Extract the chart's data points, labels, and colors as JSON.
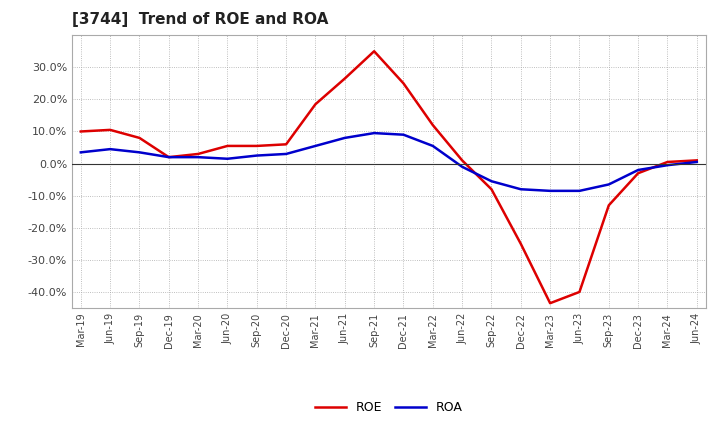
{
  "title": "[3744]  Trend of ROE and ROA",
  "title_fontsize": 11,
  "background_color": "#ffffff",
  "plot_bg_color": "#ffffff",
  "grid_color": "#aaaaaa",
  "x_labels": [
    "Mar-19",
    "Jun-19",
    "Sep-19",
    "Dec-19",
    "Mar-20",
    "Jun-20",
    "Sep-20",
    "Dec-20",
    "Mar-21",
    "Jun-21",
    "Sep-21",
    "Dec-21",
    "Mar-22",
    "Jun-22",
    "Sep-22",
    "Dec-22",
    "Mar-23",
    "Jun-23",
    "Sep-23",
    "Dec-23",
    "Mar-24",
    "Jun-24"
  ],
  "ROE": [
    10.0,
    10.5,
    8.0,
    2.0,
    3.0,
    5.5,
    5.5,
    6.0,
    18.5,
    26.5,
    35.0,
    25.0,
    12.0,
    1.0,
    -8.0,
    -25.0,
    -43.5,
    -40.0,
    -13.0,
    -3.0,
    0.5,
    1.0
  ],
  "ROA": [
    3.5,
    4.5,
    3.5,
    2.0,
    2.0,
    1.5,
    2.5,
    3.0,
    5.5,
    8.0,
    9.5,
    9.0,
    5.5,
    -1.0,
    -5.5,
    -8.0,
    -8.5,
    -8.5,
    -6.5,
    -2.0,
    -0.5,
    0.5
  ],
  "roe_color": "#dd0000",
  "roa_color": "#0000cc",
  "ylim": [
    -45,
    40
  ],
  "yticks": [
    -40,
    -30,
    -20,
    -10,
    0,
    10,
    20,
    30
  ],
  "line_width": 1.8,
  "xlabel_fontsize": 7,
  "ylabel_fontsize": 8
}
